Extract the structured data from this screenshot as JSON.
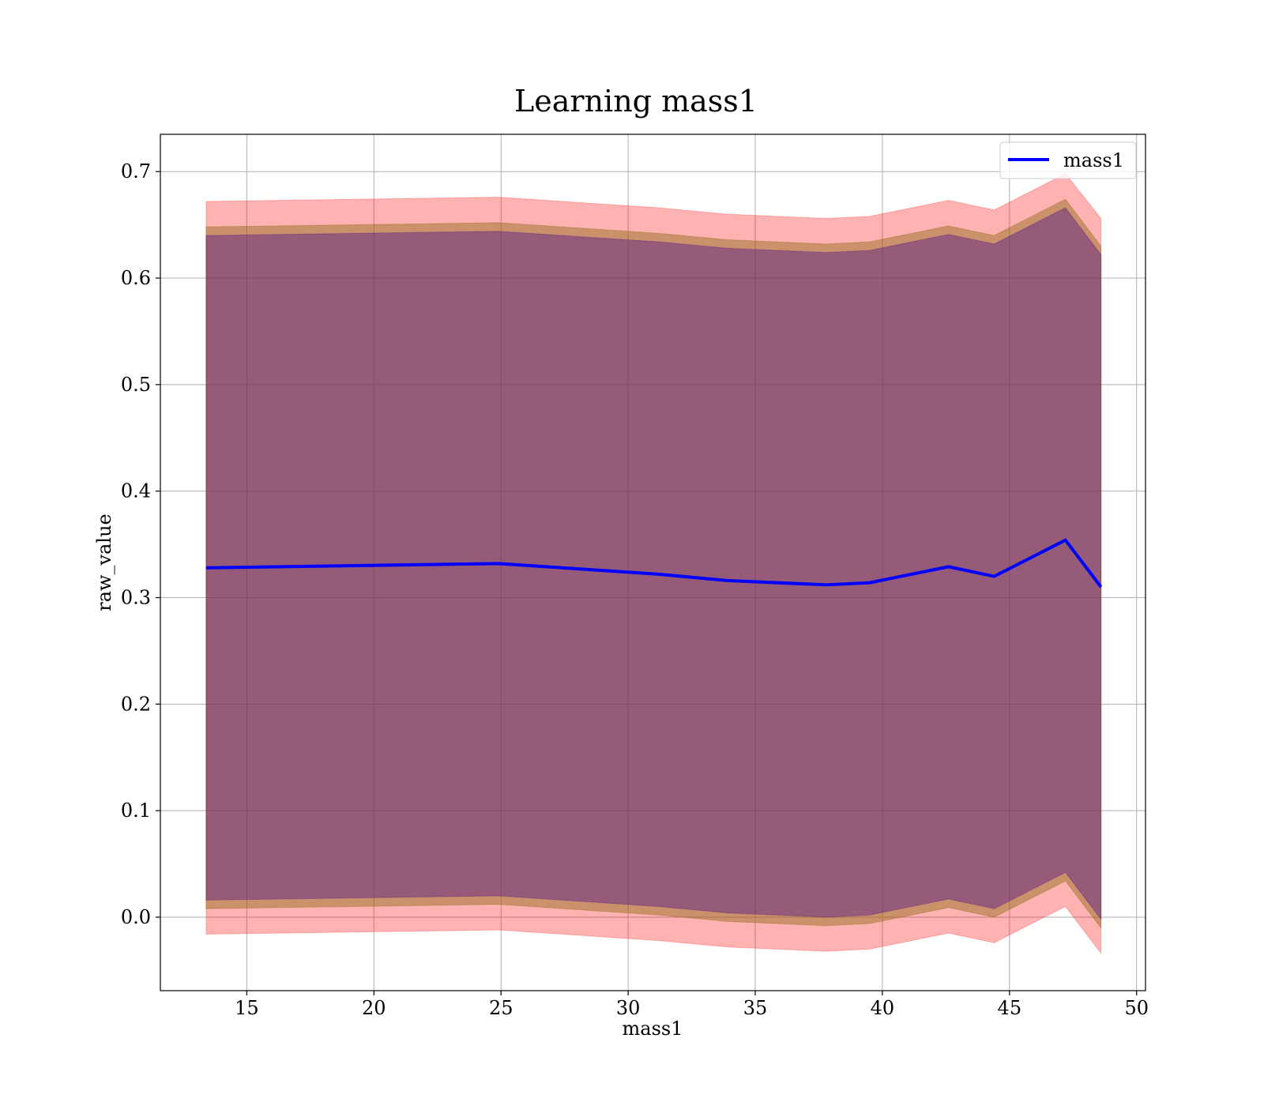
{
  "chart_data": {
    "type": "line",
    "title": "Learning mass1",
    "xlabel": "mass1",
    "ylabel": "raw_value",
    "xlim": [
      11.6,
      50.35
    ],
    "ylim": [
      -0.069,
      0.735
    ],
    "xticks": [
      15,
      20,
      25,
      30,
      35,
      40,
      45,
      50
    ],
    "yticks": [
      0.0,
      0.1,
      0.2,
      0.3,
      0.4,
      0.5,
      0.6,
      0.7
    ],
    "grid": true,
    "legend_position": "top-right",
    "x": [
      13.4,
      24.9,
      31.2,
      33.9,
      37.8,
      39.5,
      42.6,
      44.4,
      47.2,
      48.6
    ],
    "series": [
      {
        "name": "mass1",
        "color": "#0000ff",
        "values": [
          0.328,
          0.332,
          0.322,
          0.316,
          0.312,
          0.314,
          0.329,
          0.32,
          0.354,
          0.31
        ]
      }
    ],
    "bands": [
      {
        "color": "#ff0000",
        "opacity": 0.3,
        "upper": [
          0.672,
          0.676,
          0.666,
          0.66,
          0.656,
          0.658,
          0.673,
          0.664,
          0.698,
          0.656
        ],
        "lower": [
          -0.016,
          -0.012,
          -0.022,
          -0.028,
          -0.032,
          -0.03,
          -0.015,
          -0.024,
          0.01,
          -0.034
        ]
      },
      {
        "color": "#8b6914",
        "opacity": 0.45,
        "upper": [
          0.648,
          0.652,
          0.642,
          0.636,
          0.632,
          0.634,
          0.649,
          0.64,
          0.674,
          0.63
        ],
        "lower": [
          0.008,
          0.012,
          0.002,
          -0.004,
          -0.008,
          -0.006,
          0.009,
          0.0,
          0.034,
          -0.01
        ]
      },
      {
        "color": "#551a8b",
        "opacity": 0.45,
        "upper": [
          0.64,
          0.644,
          0.634,
          0.628,
          0.624,
          0.626,
          0.641,
          0.632,
          0.666,
          0.622
        ],
        "lower": [
          0.016,
          0.02,
          0.01,
          0.004,
          0.0,
          0.002,
          0.017,
          0.008,
          0.042,
          -0.002
        ]
      }
    ]
  }
}
